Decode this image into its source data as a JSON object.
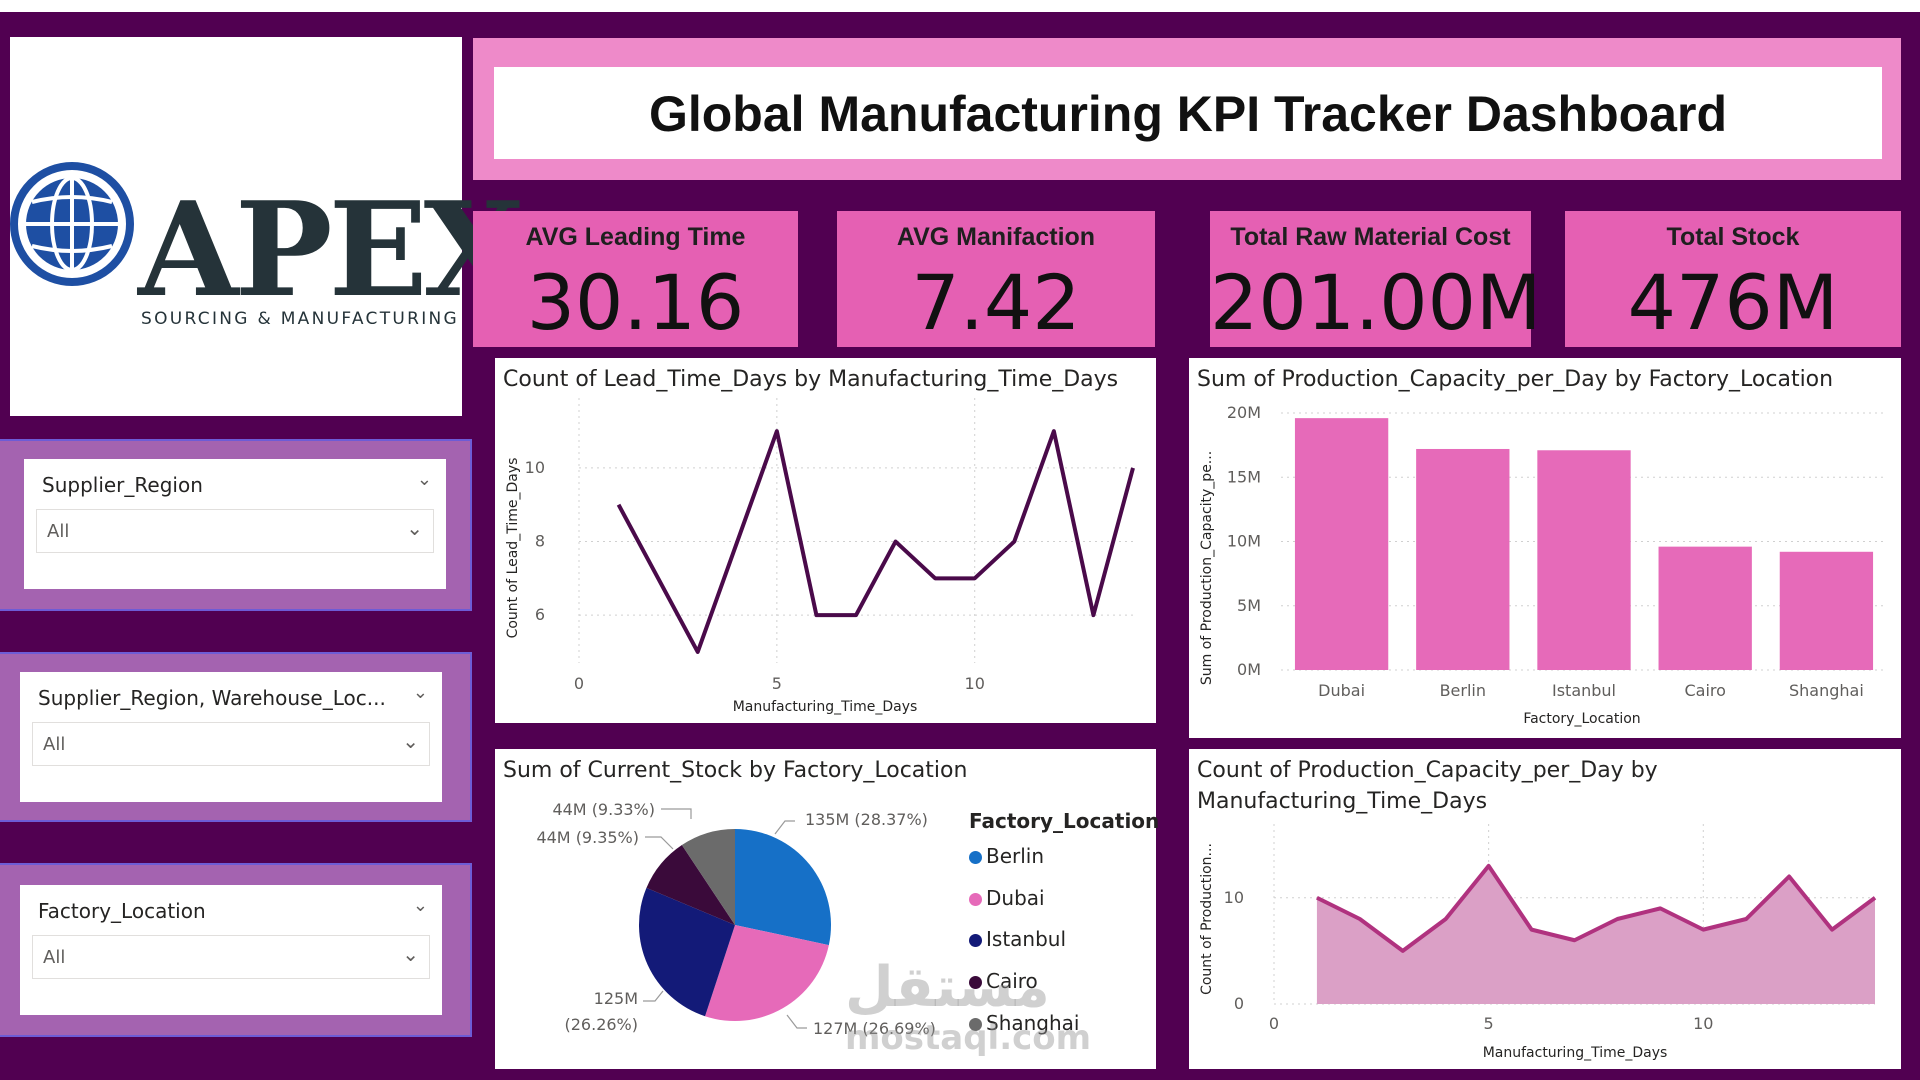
{
  "dashboard": {
    "title": "Global Manufacturing KPI Tracker Dashboard"
  },
  "logo": {
    "name": "APEX",
    "subtitle": "SOURCING & MANUFACTURING",
    "colors": {
      "globe": "#1e4fa3",
      "text": "#253339"
    }
  },
  "slicers": [
    {
      "label": "Supplier_Region",
      "value": "All"
    },
    {
      "label": "Supplier_Region, Warehouse_Loc...",
      "value": "All"
    },
    {
      "label": "Factory_Location",
      "value": "All"
    }
  ],
  "kpis": [
    {
      "label": "AVG Leading Time",
      "value": "30.16"
    },
    {
      "label": "AVG Manifaction",
      "value": "7.42"
    },
    {
      "label": "Total Raw Material Cost",
      "value": "201.00M"
    },
    {
      "label": "Total Stock",
      "value": "476M"
    }
  ],
  "colors": {
    "frame": "#510051",
    "title_band": "#ee8ac9",
    "kpi_card": "#e560b3",
    "slicer_band": "#a463b0",
    "line": "#4a0a4a",
    "bar": "#e66ab9",
    "area_line": "#b0327f",
    "area_fill": "#dba0c6"
  },
  "chart_data": [
    {
      "type": "line",
      "title": "Count of Lead_Time_Days by Manufacturing_Time_Days",
      "xlabel": "Manufacturing_Time_Days",
      "ylabel": "Count of Lead_Time_Days",
      "x": [
        1,
        2,
        3,
        4,
        5,
        6,
        7,
        8,
        9,
        10,
        11,
        12,
        13,
        14
      ],
      "values": [
        9,
        7,
        5,
        8,
        11,
        6,
        6,
        8,
        7,
        7,
        8,
        11,
        6,
        10
      ],
      "xticks": [
        "0",
        "5",
        "10"
      ],
      "yticks": [
        "6",
        "8",
        "10"
      ],
      "xlim": [
        0,
        14
      ],
      "ylim": [
        4.7,
        11.9
      ],
      "grid": true
    },
    {
      "type": "bar",
      "title": "Sum of Production_Capacity_per_Day by Factory_Location",
      "xlabel": "Factory_Location",
      "ylabel": "Sum of Production_Capacity_pe...",
      "categories": [
        "Dubai",
        "Berlin",
        "Istanbul",
        "Cairo",
        "Shanghai"
      ],
      "values": [
        19.6,
        17.2,
        17.1,
        9.6,
        9.2
      ],
      "yticks": [
        "0M",
        "5M",
        "10M",
        "15M",
        "20M"
      ],
      "ylim": [
        0,
        20
      ],
      "grid": true
    },
    {
      "type": "pie",
      "title": "Sum of Current_Stock by Factory_Location",
      "legend_title": "Factory_Location",
      "legend_position": "right",
      "slices": [
        {
          "name": "Berlin",
          "value": 135,
          "label": "135M (28.37%)",
          "color": "#1670c7"
        },
        {
          "name": "Dubai",
          "value": 127,
          "label": "127M (26.69%)",
          "color": "#e66ab9"
        },
        {
          "name": "Istanbul",
          "value": 125,
          "label_line1": "125M",
          "label_line2": "(26.26%)",
          "color": "#131a78"
        },
        {
          "name": "Cairo",
          "value": 44.5,
          "label": "44M (9.35%)",
          "color": "#3a0a3a"
        },
        {
          "name": "Shanghai",
          "value": 44.4,
          "label": "44M (9.33%)",
          "color": "#6b6b6b"
        }
      ]
    },
    {
      "type": "area",
      "title_line1": "Count of Production_Capacity_per_Day by",
      "title_line2": "Manufacturing_Time_Days",
      "xlabel": "Manufacturing_Time_Days",
      "ylabel": "Count of Production...",
      "x": [
        1,
        2,
        3,
        4,
        5,
        6,
        7,
        8,
        9,
        10,
        11,
        12,
        13,
        14
      ],
      "values": [
        10,
        8,
        5,
        8,
        13,
        7,
        6,
        8,
        9,
        7,
        8,
        12,
        7,
        10
      ],
      "xticks": [
        "0",
        "5",
        "10"
      ],
      "yticks": [
        "0",
        "10"
      ],
      "xlim": [
        0,
        14
      ],
      "ylim": [
        0,
        16
      ],
      "grid": true
    }
  ],
  "watermark": {
    "arabic": "مستقل",
    "latin": "mostaql.com"
  }
}
